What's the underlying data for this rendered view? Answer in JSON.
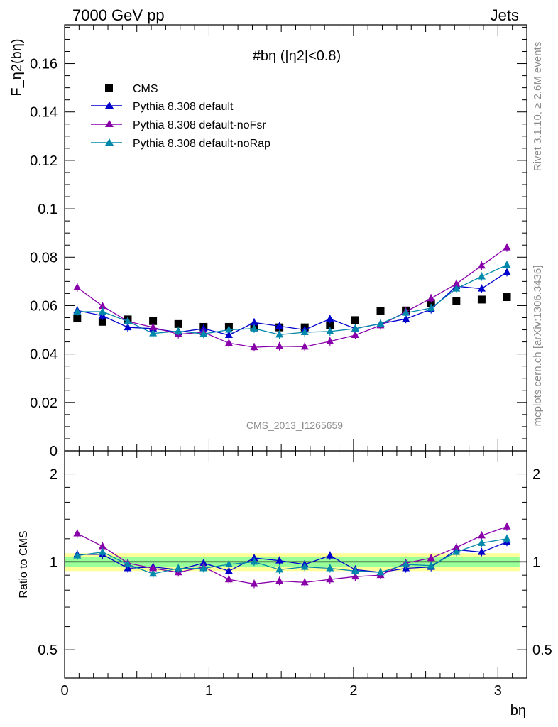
{
  "header": {
    "left": "7000 GeV pp",
    "right": "Jets"
  },
  "side_labels": {
    "rivet": "Rivet 3.1.10, ≥ 2.6M events",
    "mcplots": "mcplots.cern.ch [arXiv:1306.3436]"
  },
  "watermark": "CMS_2013_I1265659",
  "colors": {
    "cms": "#000000",
    "default": "#0000cc",
    "noFsr": "#8800aa",
    "noRap": "#0088aa",
    "band_inner": "#99ff99",
    "band_outer": "#ffff99"
  },
  "chart_data": [
    {
      "type": "scatter",
      "title": "#bη (|η2|<0.8)",
      "ylabel": "F_η2(bη)",
      "xlabel": "bη",
      "xlim": [
        0,
        3.2
      ],
      "ylim": [
        0,
        0.176
      ],
      "yticks": [
        "0",
        "0.02",
        "0.04",
        "0.06",
        "0.08",
        "0.1",
        "0.12",
        "0.14",
        "0.16"
      ],
      "x": [
        0.0875,
        0.2625,
        0.4375,
        0.6125,
        0.7875,
        0.9625,
        1.1375,
        1.3125,
        1.4875,
        1.6625,
        1.8375,
        2.0125,
        2.1875,
        2.3625,
        2.5375,
        2.7125,
        2.8875,
        3.0625
      ],
      "series": [
        {
          "name": "CMS",
          "values": [
            0.0547,
            0.0533,
            0.0543,
            0.0536,
            0.0524,
            0.0512,
            0.0512,
            0.0512,
            0.051,
            0.051,
            0.052,
            0.054,
            0.0578,
            0.058,
            0.061,
            0.062,
            0.0625,
            0.0635
          ]
        },
        {
          "name": "Pythia 8.308 default",
          "values": [
            0.058,
            0.0558,
            0.051,
            0.0505,
            0.049,
            0.0505,
            0.0478,
            0.053,
            0.0515,
            0.05,
            0.0545,
            0.0505,
            0.0525,
            0.0545,
            0.0585,
            0.068,
            0.067,
            0.0738
          ]
        },
        {
          "name": "Pythia 8.308 default-noFsr",
          "values": [
            0.0675,
            0.0598,
            0.0535,
            0.051,
            0.0482,
            0.049,
            0.0445,
            0.0428,
            0.0432,
            0.043,
            0.0452,
            0.0478,
            0.0518,
            0.0575,
            0.063,
            0.069,
            0.0765,
            0.084
          ]
        },
        {
          "name": "Pythia 8.308 default-noRap",
          "values": [
            0.0575,
            0.0575,
            0.0535,
            0.0485,
            0.0495,
            0.0483,
            0.05,
            0.0505,
            0.048,
            0.049,
            0.0493,
            0.0505,
            0.0525,
            0.057,
            0.059,
            0.067,
            0.072,
            0.0768
          ]
        }
      ]
    },
    {
      "type": "scatter",
      "ylabel": "Ratio to CMS",
      "xlabel": "bη",
      "xlim": [
        0,
        3.2
      ],
      "ylim": [
        0.4,
        2.4
      ],
      "scale": "log",
      "yticks": [
        "0.5",
        "1",
        "2"
      ],
      "xticks": [
        "0",
        "1",
        "2",
        "3"
      ],
      "x": [
        0.0875,
        0.2625,
        0.4375,
        0.6125,
        0.7875,
        0.9625,
        1.1375,
        1.3125,
        1.4875,
        1.6625,
        1.8375,
        2.0125,
        2.1875,
        2.3625,
        2.5375,
        2.7125,
        2.8875,
        3.0625
      ],
      "band": {
        "inner": 0.04,
        "outer": 0.07
      },
      "series": [
        {
          "name": "Pythia 8.308 default",
          "values": [
            1.06,
            1.06,
            0.95,
            0.96,
            0.94,
            0.99,
            0.93,
            1.03,
            1.01,
            0.98,
            1.05,
            0.94,
            0.92,
            0.95,
            0.96,
            1.1,
            1.08,
            1.17
          ]
        },
        {
          "name": "Pythia 8.308 default-noFsr",
          "values": [
            1.25,
            1.13,
            0.99,
            0.95,
            0.92,
            0.96,
            0.87,
            0.84,
            0.86,
            0.85,
            0.87,
            0.89,
            0.9,
            0.99,
            1.03,
            1.12,
            1.23,
            1.32
          ]
        },
        {
          "name": "Pythia 8.308 default-noRap",
          "values": [
            1.05,
            1.08,
            0.98,
            0.91,
            0.95,
            0.95,
            0.98,
            1.0,
            0.94,
            0.96,
            0.95,
            0.93,
            0.92,
            0.98,
            0.97,
            1.08,
            1.16,
            1.2
          ]
        }
      ]
    }
  ]
}
